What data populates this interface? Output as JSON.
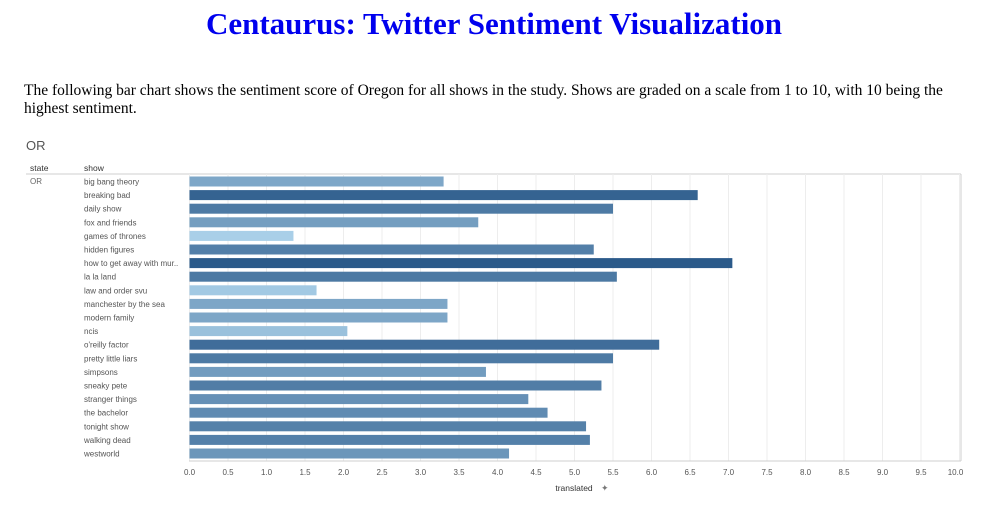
{
  "page": {
    "title": "Centaurus: Twitter Sentiment Visualization",
    "intro": "The following bar chart shows the sentiment score of Oregon for all shows in the study. Shows are graded on a scale from 1 to 10, with 10 being the highest sentiment."
  },
  "chart_data": {
    "type": "bar",
    "orientation": "horizontal",
    "title": "OR",
    "row_header_state": "state",
    "row_header_show": "show",
    "state_value": "OR",
    "categories": [
      "big bang theory",
      "breaking bad",
      "daily show",
      "fox and friends",
      "games of thrones",
      "hidden figures",
      "how to get away with mur..",
      "la la land",
      "law and order svu",
      "manchester by the sea",
      "modern family",
      "ncis",
      "o'reilly factor",
      "pretty little liars",
      "simpsons",
      "sneaky pete",
      "stranger things",
      "the bachelor",
      "tonight show",
      "walking dead",
      "westworld"
    ],
    "values": [
      3.3,
      6.6,
      5.5,
      3.75,
      1.35,
      5.25,
      7.05,
      5.55,
      1.65,
      3.35,
      3.35,
      2.05,
      6.1,
      5.5,
      3.85,
      5.35,
      4.4,
      4.65,
      5.15,
      5.2,
      4.15
    ],
    "xlabel": "translated",
    "xlim": [
      0,
      10
    ],
    "xticks": [
      "0.0",
      "0.5",
      "1.0",
      "1.5",
      "2.0",
      "2.5",
      "3.0",
      "3.5",
      "4.0",
      "4.5",
      "5.0",
      "5.5",
      "6.0",
      "6.5",
      "7.0",
      "7.5",
      "8.0",
      "8.5",
      "9.0",
      "9.5",
      "10.0"
    ],
    "grid": true,
    "color_scale": [
      "#a9cfe8",
      "#2b5a8a"
    ]
  }
}
